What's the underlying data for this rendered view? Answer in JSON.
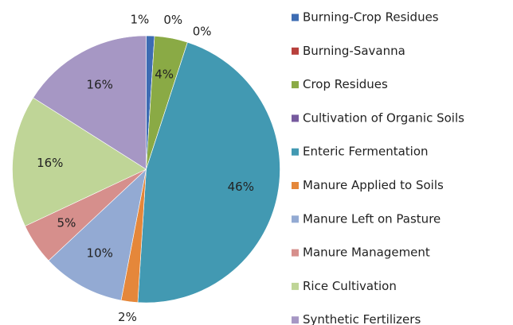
{
  "chart_data": {
    "type": "pie",
    "categories": [
      "Burning-Crop Residues",
      "Burning-Savanna",
      "Crop Residues",
      "Cultivation of Organic Soils",
      "Enteric Fermentation",
      "Manure Applied to Soils",
      "Manure Left on Pasture",
      "Manure Management",
      "Rice Cultivation",
      "Synthetic Fertilizers"
    ],
    "values": [
      1,
      0,
      4,
      0,
      46,
      2,
      10,
      5,
      16,
      16
    ],
    "value_labels": [
      "1%",
      "0%",
      "4%",
      "0%",
      "46%",
      "2%",
      "10%",
      "5%",
      "16%",
      "16%"
    ],
    "colors": [
      "#3d6cb3",
      "#b8403c",
      "#8aaa45",
      "#765a9e",
      "#4299b2",
      "#e5873a",
      "#93aad3",
      "#d68f8c",
      "#bfd597",
      "#a697c4"
    ],
    "legend": "right"
  }
}
